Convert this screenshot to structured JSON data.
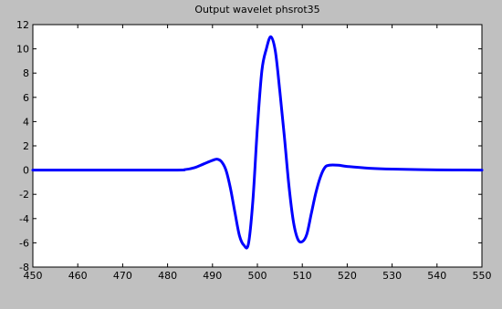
{
  "chart_data": {
    "type": "line",
    "title": "Output wavelet phsrot35",
    "xlabel": "",
    "ylabel": "",
    "xlim": [
      450,
      550
    ],
    "ylim": [
      -8,
      12
    ],
    "xticks": [
      450,
      460,
      470,
      480,
      490,
      500,
      510,
      520,
      530,
      540,
      550
    ],
    "yticks": [
      -8,
      -6,
      -4,
      -2,
      0,
      2,
      4,
      6,
      8,
      10,
      12
    ],
    "grid": false,
    "legend": "none",
    "series": [
      {
        "color": "#0000ff",
        "x": [
          450,
          480,
          484,
          486,
          488,
          490,
          491,
          492,
          493,
          494,
          495,
          496,
          497,
          498,
          499,
          500,
          501,
          502,
          503,
          504,
          505,
          506,
          507,
          508,
          509,
          510,
          511,
          512,
          513,
          514,
          515,
          516,
          518,
          520,
          525,
          530,
          540,
          550
        ],
        "y": [
          0,
          0,
          0.05,
          0.2,
          0.5,
          0.8,
          0.9,
          0.7,
          0.0,
          -1.5,
          -3.5,
          -5.4,
          -6.2,
          -6.1,
          -2.5,
          3.5,
          8.2,
          10.0,
          11.0,
          9.8,
          6.5,
          2.8,
          -1.2,
          -4.2,
          -5.7,
          -5.9,
          -5.3,
          -3.6,
          -1.9,
          -0.6,
          0.2,
          0.4,
          0.4,
          0.3,
          0.15,
          0.08,
          0.02,
          0
        ]
      }
    ]
  }
}
